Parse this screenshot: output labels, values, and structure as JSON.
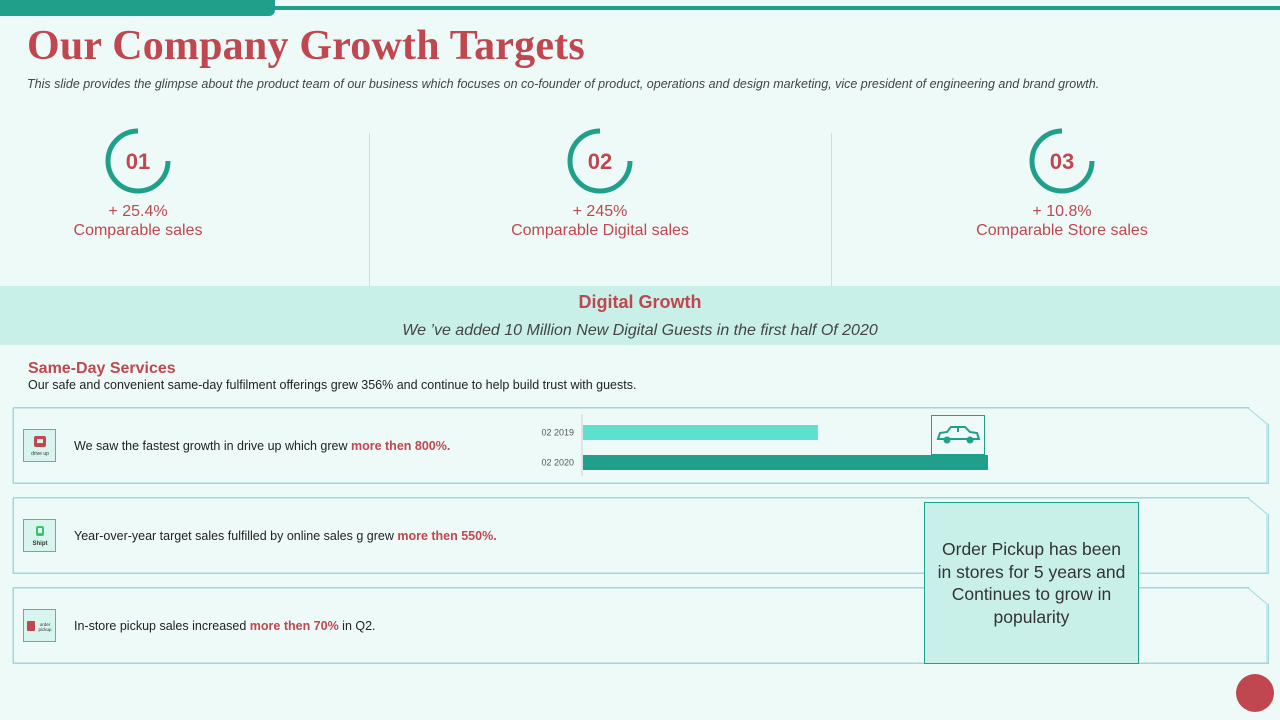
{
  "title": "Our Company Growth Targets",
  "subtitle": "This slide provides  the glimpse about the product  team of our business which  focuses on co-founder  of product,  operations and design marketing,  vice president of engineering  and brand growth.",
  "metrics": [
    {
      "num": "01",
      "pct": "+ 25.4%",
      "label": "Comparable sales",
      "ring_progress": 0.75
    },
    {
      "num": "02",
      "pct": "+ 245%",
      "label": "Comparable Digital sales",
      "ring_progress": 0.75
    },
    {
      "num": "03",
      "pct": "+ 10.8%",
      "label": "Comparable Store sales",
      "ring_progress": 0.75
    }
  ],
  "colors": {
    "accent": "#20a08a",
    "brand_red": "#c0474f",
    "band": "#c8f0e8",
    "bar_light": "#5fe0cc"
  },
  "digital": {
    "title": "Digital Growth",
    "subtitle": "We ’ve added 10 Million New Digital Guests  in the first half Of 2020"
  },
  "same_day": {
    "title": "Same-Day Services",
    "desc": "Our safe and convenient  same-day fulfilment  offerings  grew  356% and continue to help build trust with guests."
  },
  "rows": [
    {
      "icon": "drive-up-icon",
      "icon_text": "drive up",
      "text": "We saw the fastest growth in drive  up which grew ",
      "highlight": "more then 800%.",
      "tail": ""
    },
    {
      "icon": "shipt-icon",
      "icon_text": "Shipt",
      "text": "Year-over-year  target  sales fulfilled  by online  sales g grew ",
      "highlight": "more then 550%.",
      "tail": ""
    },
    {
      "icon": "order-pickup-icon",
      "icon_text": "order pickup",
      "text": "In-store  pickup sales increased ",
      "highlight": "more then 70%",
      "tail": "  in Q2."
    }
  ],
  "chart_data": {
    "type": "bar",
    "orientation": "horizontal",
    "categories": [
      "02 2019",
      "02 2020"
    ],
    "values": [
      0.58,
      1.0
    ],
    "xlim": [
      0,
      1
    ],
    "colors": [
      "#5fe0cc",
      "#20a08a"
    ]
  },
  "callout": "Order Pickup has been in stores for 5 years and Continues to grow in popularity"
}
